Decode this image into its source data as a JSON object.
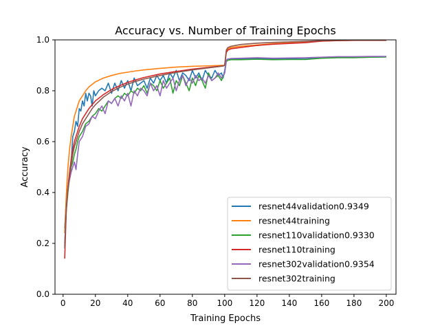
{
  "chart_data": {
    "type": "line",
    "title": "Accuracy vs. Number of Training Epochs",
    "xlabel": "Training Epochs",
    "ylabel": "Accuracy",
    "xlim": [
      -5,
      206
    ],
    "ylim": [
      0.0,
      1.0
    ],
    "xticks": [
      0,
      20,
      40,
      60,
      80,
      100,
      120,
      140,
      160,
      180,
      200
    ],
    "yticks": [
      0.0,
      0.2,
      0.4,
      0.6,
      0.8,
      1.0
    ],
    "xtick_labels": [
      "0",
      "20",
      "40",
      "60",
      "80",
      "100",
      "120",
      "140",
      "160",
      "180",
      "200"
    ],
    "ytick_labels": [
      "0.0",
      "0.2",
      "0.4",
      "0.6",
      "0.8",
      "1.0"
    ],
    "grid": false,
    "legend_position": "lower-right",
    "series": [
      {
        "name": "resnet44validation0.9349",
        "color": "#1f77b4",
        "x": [
          1,
          2,
          3,
          4,
          5,
          6,
          7,
          8,
          9,
          10,
          11,
          12,
          13,
          14,
          15,
          16,
          17,
          18,
          19,
          20,
          22,
          24,
          26,
          28,
          30,
          32,
          34,
          36,
          38,
          40,
          42,
          44,
          46,
          48,
          50,
          52,
          54,
          56,
          58,
          60,
          62,
          64,
          66,
          68,
          70,
          72,
          74,
          76,
          78,
          80,
          82,
          84,
          86,
          88,
          90,
          92,
          94,
          96,
          98,
          99,
          100,
          101,
          102,
          104,
          110,
          120,
          130,
          140,
          150,
          160,
          170,
          180,
          190,
          200
        ],
        "y": [
          0.26,
          0.37,
          0.42,
          0.47,
          0.52,
          0.62,
          0.64,
          0.68,
          0.66,
          0.73,
          0.72,
          0.76,
          0.74,
          0.79,
          0.76,
          0.79,
          0.78,
          0.74,
          0.8,
          0.78,
          0.8,
          0.81,
          0.8,
          0.83,
          0.79,
          0.83,
          0.8,
          0.84,
          0.81,
          0.84,
          0.8,
          0.85,
          0.82,
          0.83,
          0.84,
          0.81,
          0.85,
          0.83,
          0.86,
          0.84,
          0.86,
          0.83,
          0.87,
          0.85,
          0.88,
          0.84,
          0.87,
          0.86,
          0.84,
          0.88,
          0.85,
          0.87,
          0.84,
          0.88,
          0.86,
          0.85,
          0.88,
          0.86,
          0.87,
          0.85,
          0.88,
          0.92,
          0.925,
          0.925,
          0.925,
          0.927,
          0.925,
          0.925,
          0.925,
          0.93,
          0.931,
          0.931,
          0.932,
          0.933
        ]
      },
      {
        "name": "resnet44training",
        "color": "#ff7f0e",
        "x": [
          1,
          2,
          3,
          4,
          5,
          6,
          7,
          8,
          9,
          10,
          12,
          14,
          16,
          18,
          20,
          25,
          30,
          35,
          40,
          45,
          50,
          60,
          70,
          80,
          90,
          99,
          100,
          101,
          102,
          104,
          110,
          120,
          130,
          140,
          150,
          160,
          170,
          180,
          190,
          200
        ],
        "y": [
          0.24,
          0.39,
          0.5,
          0.57,
          0.62,
          0.66,
          0.7,
          0.72,
          0.74,
          0.76,
          0.78,
          0.8,
          0.815,
          0.825,
          0.835,
          0.85,
          0.86,
          0.868,
          0.873,
          0.878,
          0.882,
          0.888,
          0.893,
          0.896,
          0.898,
          0.9,
          0.9,
          0.955,
          0.965,
          0.97,
          0.975,
          0.98,
          0.985,
          0.988,
          0.99,
          0.995,
          0.997,
          0.998,
          0.998,
          0.998
        ]
      },
      {
        "name": "resnet110validation0.9330",
        "color": "#2ca02c",
        "x": [
          1,
          2,
          3,
          4,
          5,
          6,
          7,
          8,
          9,
          10,
          12,
          14,
          16,
          18,
          20,
          22,
          24,
          26,
          28,
          30,
          32,
          34,
          36,
          38,
          40,
          42,
          44,
          46,
          48,
          50,
          52,
          54,
          56,
          58,
          60,
          62,
          64,
          66,
          68,
          70,
          72,
          74,
          76,
          78,
          80,
          82,
          84,
          86,
          88,
          90,
          92,
          94,
          96,
          98,
          100,
          101,
          102,
          104,
          110,
          120,
          130,
          140,
          150,
          160,
          170,
          180,
          190,
          200
        ],
        "y": [
          0.2,
          0.33,
          0.4,
          0.46,
          0.5,
          0.52,
          0.55,
          0.57,
          0.6,
          0.62,
          0.64,
          0.67,
          0.68,
          0.7,
          0.71,
          0.73,
          0.72,
          0.74,
          0.76,
          0.75,
          0.77,
          0.78,
          0.77,
          0.79,
          0.78,
          0.8,
          0.79,
          0.81,
          0.8,
          0.82,
          0.79,
          0.83,
          0.82,
          0.8,
          0.84,
          0.81,
          0.83,
          0.85,
          0.79,
          0.84,
          0.82,
          0.86,
          0.83,
          0.8,
          0.85,
          0.82,
          0.86,
          0.84,
          0.81,
          0.87,
          0.84,
          0.85,
          0.86,
          0.84,
          0.87,
          0.915,
          0.92,
          0.922,
          0.922,
          0.924,
          0.922,
          0.923,
          0.923,
          0.928,
          0.93,
          0.93,
          0.932,
          0.933
        ]
      },
      {
        "name": "resnet110training",
        "color": "#d62728",
        "x": [
          1,
          2,
          3,
          4,
          5,
          6,
          7,
          8,
          9,
          10,
          12,
          14,
          16,
          18,
          20,
          25,
          30,
          35,
          40,
          45,
          50,
          60,
          70,
          80,
          90,
          99,
          100,
          101,
          102,
          104,
          110,
          120,
          130,
          140,
          150,
          160,
          170,
          180,
          190,
          200
        ],
        "y": [
          0.14,
          0.33,
          0.42,
          0.48,
          0.53,
          0.57,
          0.6,
          0.62,
          0.64,
          0.66,
          0.69,
          0.71,
          0.73,
          0.745,
          0.76,
          0.785,
          0.805,
          0.82,
          0.833,
          0.843,
          0.852,
          0.866,
          0.876,
          0.885,
          0.892,
          0.898,
          0.9,
          0.95,
          0.96,
          0.965,
          0.97,
          0.978,
          0.983,
          0.986,
          0.989,
          0.995,
          0.997,
          0.998,
          0.998,
          0.998
        ]
      },
      {
        "name": "resnet302validation0.9354",
        "color": "#9467bd",
        "x": [
          1,
          2,
          3,
          4,
          5,
          6,
          7,
          8,
          9,
          10,
          12,
          14,
          16,
          18,
          20,
          22,
          24,
          26,
          28,
          30,
          32,
          34,
          36,
          38,
          40,
          42,
          44,
          46,
          48,
          50,
          52,
          54,
          56,
          58,
          60,
          62,
          64,
          66,
          68,
          70,
          72,
          74,
          76,
          78,
          80,
          82,
          84,
          86,
          88,
          90,
          92,
          94,
          96,
          98,
          100,
          101,
          102,
          104,
          110,
          120,
          130,
          140,
          150,
          160,
          170,
          180,
          190,
          200
        ],
        "y": [
          0.19,
          0.34,
          0.42,
          0.45,
          0.48,
          0.5,
          0.52,
          0.49,
          0.55,
          0.6,
          0.62,
          0.66,
          0.67,
          0.7,
          0.69,
          0.72,
          0.74,
          0.71,
          0.76,
          0.75,
          0.77,
          0.74,
          0.78,
          0.76,
          0.79,
          0.74,
          0.8,
          0.78,
          0.81,
          0.8,
          0.78,
          0.83,
          0.8,
          0.82,
          0.78,
          0.84,
          0.81,
          0.83,
          0.85,
          0.8,
          0.84,
          0.86,
          0.82,
          0.85,
          0.83,
          0.86,
          0.84,
          0.85,
          0.83,
          0.86,
          0.84,
          0.85,
          0.87,
          0.85,
          0.87,
          0.92,
          0.925,
          0.927,
          0.928,
          0.93,
          0.928,
          0.929,
          0.93,
          0.932,
          0.934,
          0.934,
          0.935,
          0.935
        ]
      },
      {
        "name": "resnet302training",
        "color": "#8c564b",
        "x": [
          1,
          2,
          3,
          4,
          5,
          6,
          7,
          8,
          9,
          10,
          12,
          14,
          16,
          18,
          20,
          25,
          30,
          35,
          40,
          45,
          50,
          60,
          70,
          80,
          90,
          99,
          100,
          101,
          102,
          104,
          110,
          120,
          130,
          140,
          150,
          160,
          170,
          180,
          190,
          200
        ],
        "y": [
          0.18,
          0.34,
          0.41,
          0.46,
          0.51,
          0.55,
          0.58,
          0.6,
          0.62,
          0.64,
          0.67,
          0.69,
          0.71,
          0.73,
          0.745,
          0.775,
          0.797,
          0.813,
          0.826,
          0.837,
          0.846,
          0.86,
          0.872,
          0.882,
          0.89,
          0.897,
          0.9,
          0.96,
          0.97,
          0.975,
          0.982,
          0.987,
          0.99,
          0.992,
          0.994,
          0.997,
          0.998,
          0.999,
          0.999,
          0.999
        ]
      }
    ]
  }
}
